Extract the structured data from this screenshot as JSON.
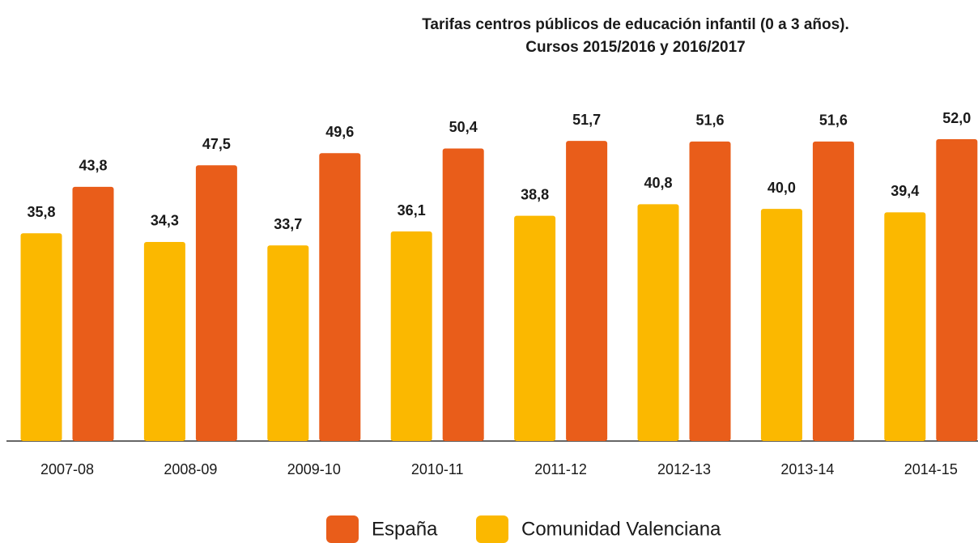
{
  "chart_data": {
    "type": "bar",
    "title": [
      "Tarifas centros públicos de educación infantil (0 a 3 años).",
      "Cursos 2015/2016 y 2016/2017"
    ],
    "categories": [
      "2007-08",
      "2008-09",
      "2009-10",
      "2010-11",
      "2011-12",
      "2012-13",
      "2013-14",
      "2014-15"
    ],
    "series": [
      {
        "name": "España",
        "color": "#e95d1a",
        "values": [
          43.8,
          47.5,
          49.6,
          50.4,
          51.7,
          51.6,
          51.6,
          52.0
        ],
        "value_labels": [
          "43,8",
          "47,5",
          "49,6",
          "50,4",
          "51,7",
          "51,6",
          "51,6",
          "52,0"
        ]
      },
      {
        "name": "Comunidad Valenciana",
        "color": "#fbb800",
        "values": [
          35.8,
          34.3,
          33.7,
          36.1,
          38.8,
          40.8,
          40.0,
          39.4
        ],
        "value_labels": [
          "35,8",
          "34,3",
          "33,7",
          "36,1",
          "38,8",
          "40,8",
          "40,0",
          "39,4"
        ]
      }
    ],
    "ylim": [
      0,
      52
    ]
  }
}
